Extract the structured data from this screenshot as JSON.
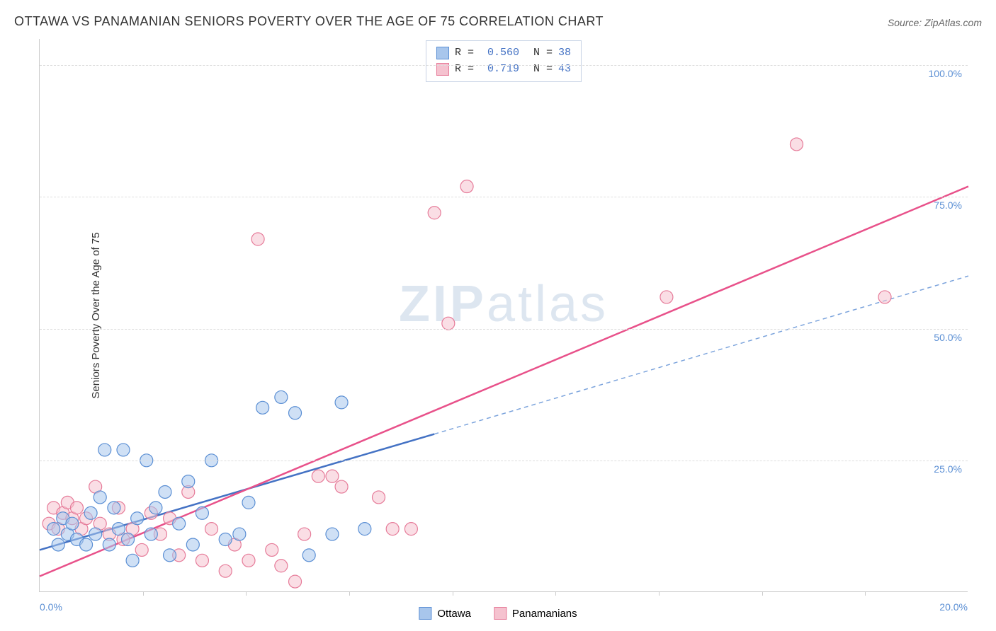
{
  "title": "OTTAWA VS PANAMANIAN SENIORS POVERTY OVER THE AGE OF 75 CORRELATION CHART",
  "source": "Source: ZipAtlas.com",
  "ylabel": "Seniors Poverty Over the Age of 75",
  "watermark_bold": "ZIP",
  "watermark_light": "atlas",
  "chart": {
    "type": "scatter",
    "xlim": [
      0,
      20
    ],
    "ylim": [
      0,
      105
    ],
    "x_start_label": "0.0%",
    "x_end_label": "20.0%",
    "y_ticks": [
      25,
      50,
      75,
      100
    ],
    "y_tick_labels": [
      "25.0%",
      "50.0%",
      "75.0%",
      "100.0%"
    ],
    "x_tick_positions": [
      2.22,
      4.44,
      6.67,
      8.89,
      11.11,
      13.33,
      15.56,
      17.78
    ],
    "background_color": "#ffffff",
    "grid_color": "#dddddd",
    "axis_label_color": "#5b8fd4",
    "marker_radius": 9,
    "marker_opacity": 0.55,
    "series": [
      {
        "name": "Ottawa",
        "fill_color": "#a8c6ec",
        "stroke_color": "#5b8fd4",
        "trend_color": "#4472c4",
        "trend_dash_color": "#7ba3dc",
        "R": "0.560",
        "N": "38",
        "trend_solid": {
          "x1": 0,
          "y1": 8,
          "x2": 8.5,
          "y2": 30
        },
        "trend_dash": {
          "x1": 8.5,
          "y1": 30,
          "x2": 20,
          "y2": 60
        },
        "points": [
          [
            0.3,
            12
          ],
          [
            0.4,
            9
          ],
          [
            0.5,
            14
          ],
          [
            0.6,
            11
          ],
          [
            0.7,
            13
          ],
          [
            0.8,
            10
          ],
          [
            1.0,
            9
          ],
          [
            1.1,
            15
          ],
          [
            1.2,
            11
          ],
          [
            1.3,
            18
          ],
          [
            1.4,
            27
          ],
          [
            1.5,
            9
          ],
          [
            1.6,
            16
          ],
          [
            1.7,
            12
          ],
          [
            1.8,
            27
          ],
          [
            1.9,
            10
          ],
          [
            2.0,
            6
          ],
          [
            2.1,
            14
          ],
          [
            2.3,
            25
          ],
          [
            2.4,
            11
          ],
          [
            2.5,
            16
          ],
          [
            2.7,
            19
          ],
          [
            2.8,
            7
          ],
          [
            3.0,
            13
          ],
          [
            3.2,
            21
          ],
          [
            3.3,
            9
          ],
          [
            3.5,
            15
          ],
          [
            3.7,
            25
          ],
          [
            4.0,
            10
          ],
          [
            4.3,
            11
          ],
          [
            4.5,
            17
          ],
          [
            4.8,
            35
          ],
          [
            5.2,
            37
          ],
          [
            5.5,
            34
          ],
          [
            5.8,
            7
          ],
          [
            6.3,
            11
          ],
          [
            6.5,
            36
          ],
          [
            7.0,
            12
          ]
        ]
      },
      {
        "name": "Panamanians",
        "fill_color": "#f5c2cf",
        "stroke_color": "#e67b99",
        "trend_color": "#e8518a",
        "R": "0.719",
        "N": "43",
        "trend_solid": {
          "x1": 0,
          "y1": 3,
          "x2": 20,
          "y2": 77
        },
        "points": [
          [
            0.2,
            13
          ],
          [
            0.3,
            16
          ],
          [
            0.4,
            12
          ],
          [
            0.5,
            15
          ],
          [
            0.6,
            17
          ],
          [
            0.7,
            14
          ],
          [
            0.8,
            16
          ],
          [
            0.9,
            12
          ],
          [
            1.0,
            14
          ],
          [
            1.2,
            20
          ],
          [
            1.3,
            13
          ],
          [
            1.5,
            11
          ],
          [
            1.7,
            16
          ],
          [
            1.8,
            10
          ],
          [
            2.0,
            12
          ],
          [
            2.2,
            8
          ],
          [
            2.4,
            15
          ],
          [
            2.6,
            11
          ],
          [
            2.8,
            14
          ],
          [
            3.0,
            7
          ],
          [
            3.2,
            19
          ],
          [
            3.5,
            6
          ],
          [
            3.7,
            12
          ],
          [
            4.0,
            4
          ],
          [
            4.2,
            9
          ],
          [
            4.5,
            6
          ],
          [
            4.7,
            67
          ],
          [
            5.0,
            8
          ],
          [
            5.2,
            5
          ],
          [
            5.5,
            2
          ],
          [
            5.7,
            11
          ],
          [
            6.0,
            22
          ],
          [
            6.3,
            22
          ],
          [
            6.5,
            20
          ],
          [
            7.3,
            18
          ],
          [
            7.6,
            12
          ],
          [
            8.0,
            12
          ],
          [
            8.5,
            72
          ],
          [
            8.8,
            51
          ],
          [
            9.2,
            77
          ],
          [
            13.5,
            56
          ],
          [
            16.3,
            85
          ],
          [
            18.2,
            56
          ]
        ]
      }
    ]
  },
  "legend_bottom": [
    {
      "label": "Ottawa",
      "fill": "#a8c6ec",
      "stroke": "#5b8fd4"
    },
    {
      "label": "Panamanians",
      "fill": "#f5c2cf",
      "stroke": "#e67b99"
    }
  ]
}
